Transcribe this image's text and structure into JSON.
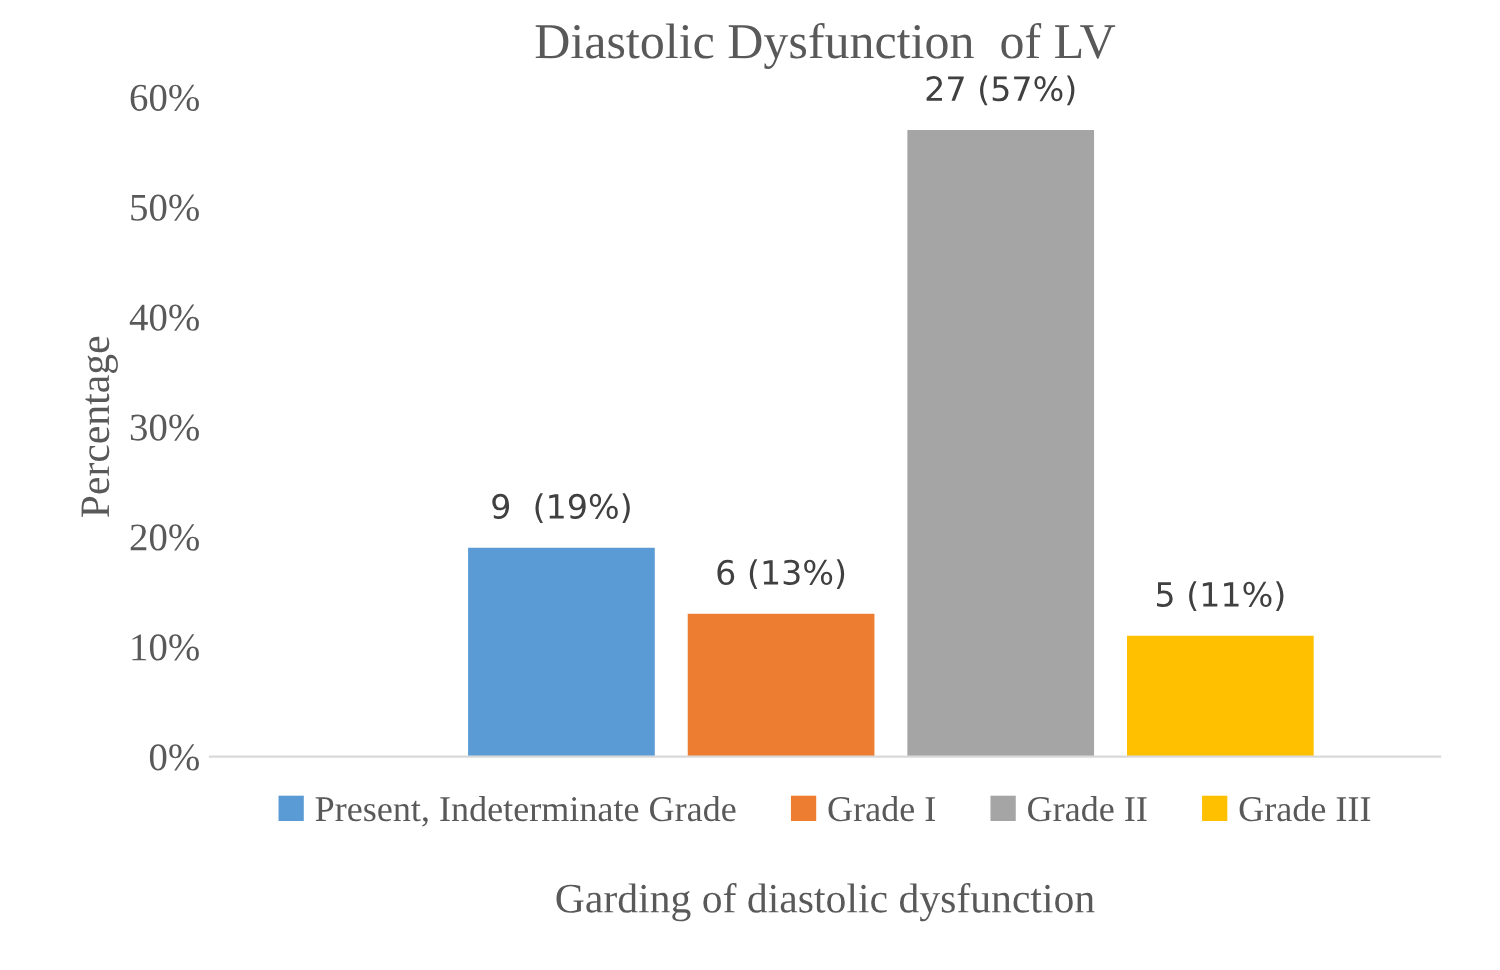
{
  "chart_data": {
    "type": "bar",
    "title": "Diastolic Dysfunction  of LV",
    "xlabel": "Garding of diastolic dysfunction",
    "ylabel": "Percentage",
    "categories": [
      null
    ],
    "series": [
      {
        "name": "Present, Indeterminate Grade",
        "color": "#5b9bd5",
        "values": [
          19
        ],
        "value_labels": [
          "9  (19%)"
        ]
      },
      {
        "name": "Grade I",
        "color": "#ed7d31",
        "values": [
          13
        ],
        "value_labels": [
          "6 (13%)"
        ]
      },
      {
        "name": "Grade II",
        "color": "#a5a5a5",
        "values": [
          57
        ],
        "value_labels": [
          "27 (57%)"
        ]
      },
      {
        "name": "Grade III",
        "color": "#ffc000",
        "values": [
          11
        ],
        "value_labels": [
          "5 (11%)"
        ]
      }
    ],
    "ylim": [
      0,
      60
    ],
    "yticks": [
      {
        "value": 0,
        "label": "0%"
      },
      {
        "value": 10,
        "label": "10%"
      },
      {
        "value": 20,
        "label": "20%"
      },
      {
        "value": 30,
        "label": "30%"
      },
      {
        "value": 40,
        "label": "40%"
      },
      {
        "value": 50,
        "label": "50%"
      },
      {
        "value": 60,
        "label": "60%"
      }
    ],
    "grid": false,
    "legend": "bottom"
  }
}
